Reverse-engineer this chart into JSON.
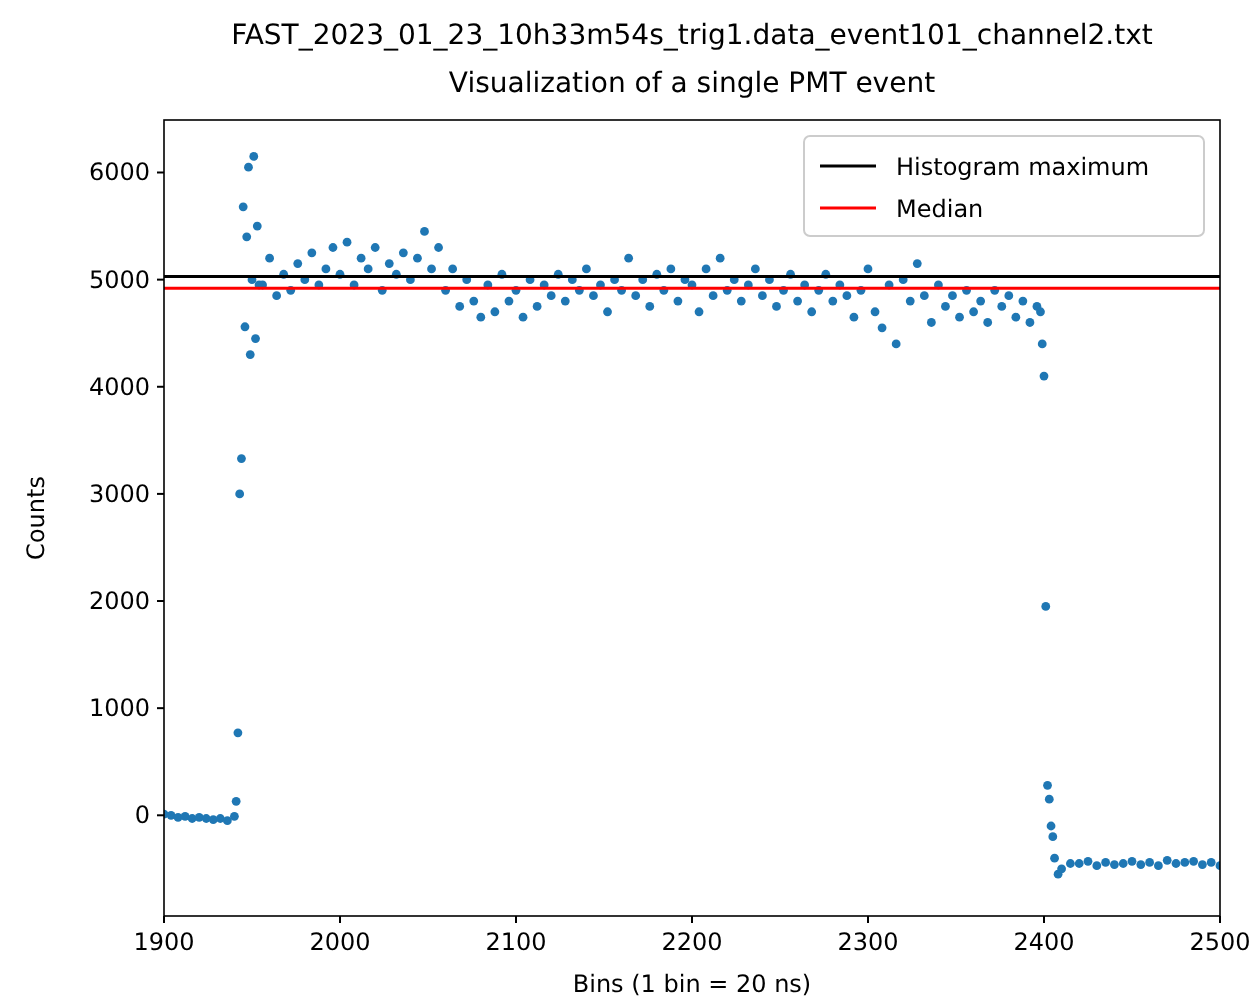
{
  "chart_data": {
    "type": "scatter",
    "title": "FAST_2023_01_23_10h33m54s_trig1.data_event101_channel2.txt",
    "subtitle": "Visualization of a single PMT event",
    "xlabel": "Bins (1 bin = 20 ns)",
    "ylabel": "Counts",
    "xlim": [
      1900,
      2500
    ],
    "xticks": [
      1900,
      2000,
      2100,
      2200,
      2300,
      2400,
      2500
    ],
    "ylim": [
      -940,
      6490
    ],
    "yticks": [
      0,
      1000,
      2000,
      3000,
      4000,
      5000,
      6000
    ],
    "marker": "circle",
    "legend": "top right",
    "grid": false,
    "series": [
      {
        "color": "#1f77b4",
        "x": [
          1900,
          1904,
          1908,
          1912,
          1916,
          1920,
          1924,
          1928,
          1932,
          1936,
          1940,
          1941,
          1942,
          1943,
          1944,
          1945,
          1946,
          1947,
          1948,
          1949,
          1950,
          1951,
          1952,
          1953,
          1954,
          1956,
          1960,
          1964,
          1968,
          1972,
          1976,
          1980,
          1984,
          1988,
          1992,
          1996,
          2000,
          2004,
          2008,
          2012,
          2016,
          2020,
          2024,
          2028,
          2032,
          2036,
          2040,
          2044,
          2048,
          2052,
          2056,
          2060,
          2064,
          2068,
          2072,
          2076,
          2080,
          2084,
          2088,
          2092,
          2096,
          2100,
          2104,
          2108,
          2112,
          2116,
          2120,
          2124,
          2128,
          2132,
          2136,
          2140,
          2144,
          2148,
          2152,
          2156,
          2160,
          2164,
          2168,
          2172,
          2176,
          2180,
          2184,
          2188,
          2192,
          2196,
          2200,
          2204,
          2208,
          2212,
          2216,
          2220,
          2224,
          2228,
          2232,
          2236,
          2240,
          2244,
          2248,
          2252,
          2256,
          2260,
          2264,
          2268,
          2272,
          2276,
          2280,
          2284,
          2288,
          2292,
          2296,
          2300,
          2304,
          2308,
          2312,
          2316,
          2320,
          2324,
          2328,
          2332,
          2336,
          2340,
          2344,
          2348,
          2352,
          2356,
          2360,
          2364,
          2368,
          2372,
          2376,
          2380,
          2384,
          2388,
          2392,
          2396,
          2398,
          2399,
          2400,
          2401,
          2402,
          2403,
          2404,
          2405,
          2406,
          2408,
          2410,
          2415,
          2420,
          2425,
          2430,
          2435,
          2440,
          2445,
          2450,
          2455,
          2460,
          2465,
          2470,
          2475,
          2480,
          2485,
          2490,
          2495,
          2500
        ],
        "values": [
          10,
          0,
          -20,
          -10,
          -30,
          -20,
          -30,
          -40,
          -30,
          -50,
          -10,
          130,
          770,
          3000,
          3330,
          5680,
          4560,
          5400,
          6050,
          4300,
          5000,
          6150,
          4450,
          5500,
          4950,
          4950,
          5200,
          4850,
          5050,
          4900,
          5150,
          5000,
          5250,
          4950,
          5100,
          5300,
          5050,
          5350,
          4950,
          5200,
          5100,
          5300,
          4900,
          5150,
          5050,
          5250,
          5000,
          5200,
          5450,
          5100,
          5300,
          4900,
          5100,
          4750,
          5000,
          4800,
          4650,
          4950,
          4700,
          5050,
          4800,
          4900,
          4650,
          5000,
          4750,
          4950,
          4850,
          5050,
          4800,
          5000,
          4900,
          5100,
          4850,
          4950,
          4700,
          5000,
          4900,
          5200,
          4850,
          5000,
          4750,
          5050,
          4900,
          5100,
          4800,
          5000,
          4950,
          4700,
          5100,
          4850,
          5200,
          4900,
          5000,
          4800,
          4950,
          5100,
          4850,
          5000,
          4750,
          4900,
          5050,
          4800,
          4950,
          4700,
          4900,
          5050,
          4800,
          4950,
          4850,
          4650,
          4900,
          5100,
          4700,
          4550,
          4950,
          4400,
          5000,
          4800,
          5150,
          4850,
          4600,
          4950,
          4750,
          4850,
          4650,
          4900,
          4700,
          4800,
          4600,
          4900,
          4750,
          4850,
          4650,
          4800,
          4600,
          4750,
          4700,
          4400,
          4100,
          1950,
          280,
          150,
          -100,
          -200,
          -400,
          -550,
          -500,
          -450,
          -450,
          -430,
          -470,
          -440,
          -460,
          -450,
          -430,
          -460,
          -440,
          -470,
          -420,
          -450,
          -440,
          -430,
          -460,
          -440,
          -470
        ]
      }
    ],
    "ref_lines": [
      {
        "axis": "y",
        "value": 5030,
        "label": "Histogram maximum",
        "color": "#000000"
      },
      {
        "axis": "y",
        "value": 4920,
        "label": "Median",
        "color": "#ff0000"
      }
    ]
  }
}
